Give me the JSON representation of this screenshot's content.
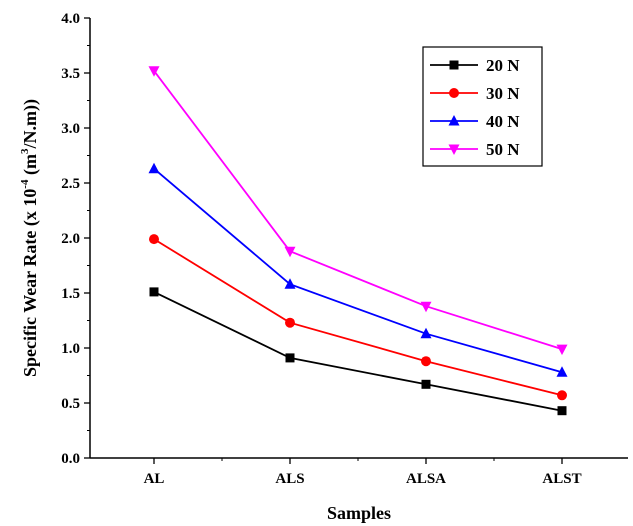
{
  "chart_data": {
    "type": "line",
    "title": "",
    "xlabel": "Samples",
    "ylabel_prefix": "Specific Wear Rate (x 10",
    "ylabel_exp": "-4",
    "ylabel_mid": " (m",
    "ylabel_exp2": "3",
    "ylabel_suffix": "/N.m))",
    "categories": [
      "AL",
      "ALS",
      "ALSA",
      "ALST"
    ],
    "ylim": [
      0.0,
      4.0
    ],
    "yticks": [
      "0.0",
      "0.5",
      "1.0",
      "1.5",
      "2.0",
      "2.5",
      "3.0",
      "3.5",
      "4.0"
    ],
    "grid": false,
    "legend_position": "top-right",
    "series": [
      {
        "name": "20 N",
        "color": "#000000",
        "marker": "square",
        "values": [
          1.51,
          0.91,
          0.67,
          0.43
        ]
      },
      {
        "name": "30 N",
        "color": "#ff0000",
        "marker": "circle",
        "values": [
          1.99,
          1.23,
          0.88,
          0.57
        ]
      },
      {
        "name": "40 N",
        "color": "#0000ff",
        "marker": "triangle-up",
        "values": [
          2.63,
          1.58,
          1.13,
          0.78
        ]
      },
      {
        "name": "50 N",
        "color": "#ff00ff",
        "marker": "triangle-down",
        "values": [
          3.52,
          1.88,
          1.38,
          0.99
        ]
      }
    ]
  }
}
